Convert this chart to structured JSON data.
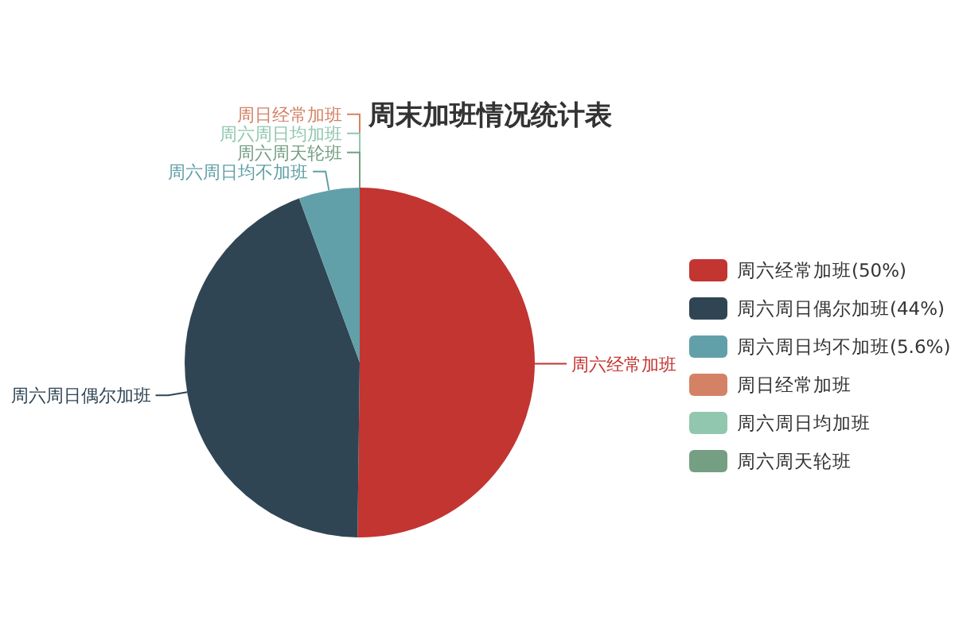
{
  "chart_data": {
    "type": "pie",
    "title": "周末加班情况统计表",
    "categories": [
      "周六经常加班",
      "周六周日偶尔加班",
      "周六周日均不加班",
      "周日经常加班",
      "周六周日均加班",
      "周六周天轮班"
    ],
    "values": [
      50,
      44,
      5.6,
      0,
      0,
      0
    ],
    "value_labels": [
      "(50%)",
      "(44%)",
      "(5.6%)",
      null,
      null,
      null
    ],
    "colors": [
      "#c23531",
      "#2f4554",
      "#61a0a8",
      "#d48265",
      "#91c7ae",
      "#749f83"
    ],
    "legend": "right"
  }
}
